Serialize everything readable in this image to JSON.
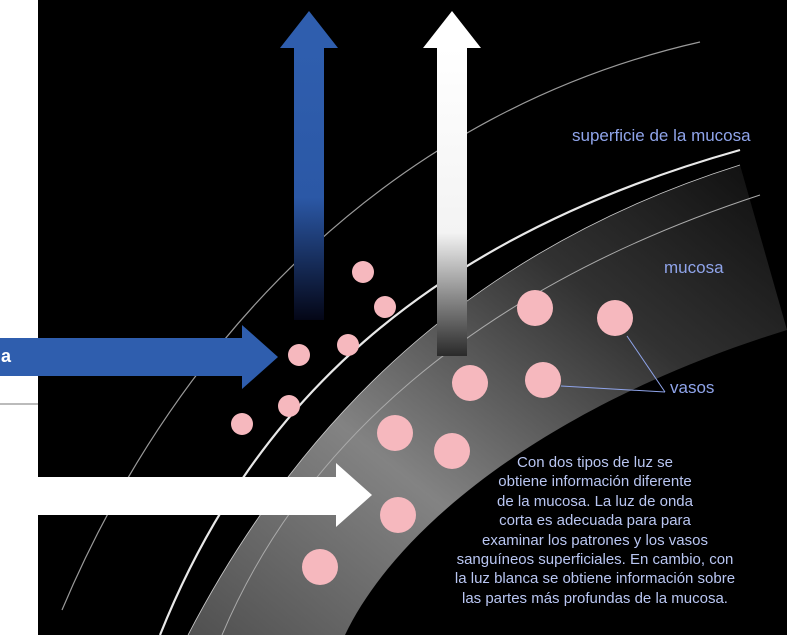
{
  "labels": {
    "surface": "superficie de la mucosa",
    "mucosa": "mucosa",
    "vessels": "vasos",
    "narrow_arrow_text": "a"
  },
  "caption_lines": [
    "Con dos tipos de luz se",
    "obtiene información diferente",
    "de la mucosa. La luz de onda",
    "corta es adecuada para para",
    "examinar los patrones y los vasos",
    "sanguíneos superficiales. En cambio, con",
    "la luz blanca se obtiene información sobre",
    "las partes más profundas de la mucosa."
  ],
  "colors": {
    "background": "#000000",
    "blue_light": "#2f5eae",
    "white_light": "#ffffff",
    "vessel": "#f6b8be",
    "label_text": "#8fa4ea"
  }
}
